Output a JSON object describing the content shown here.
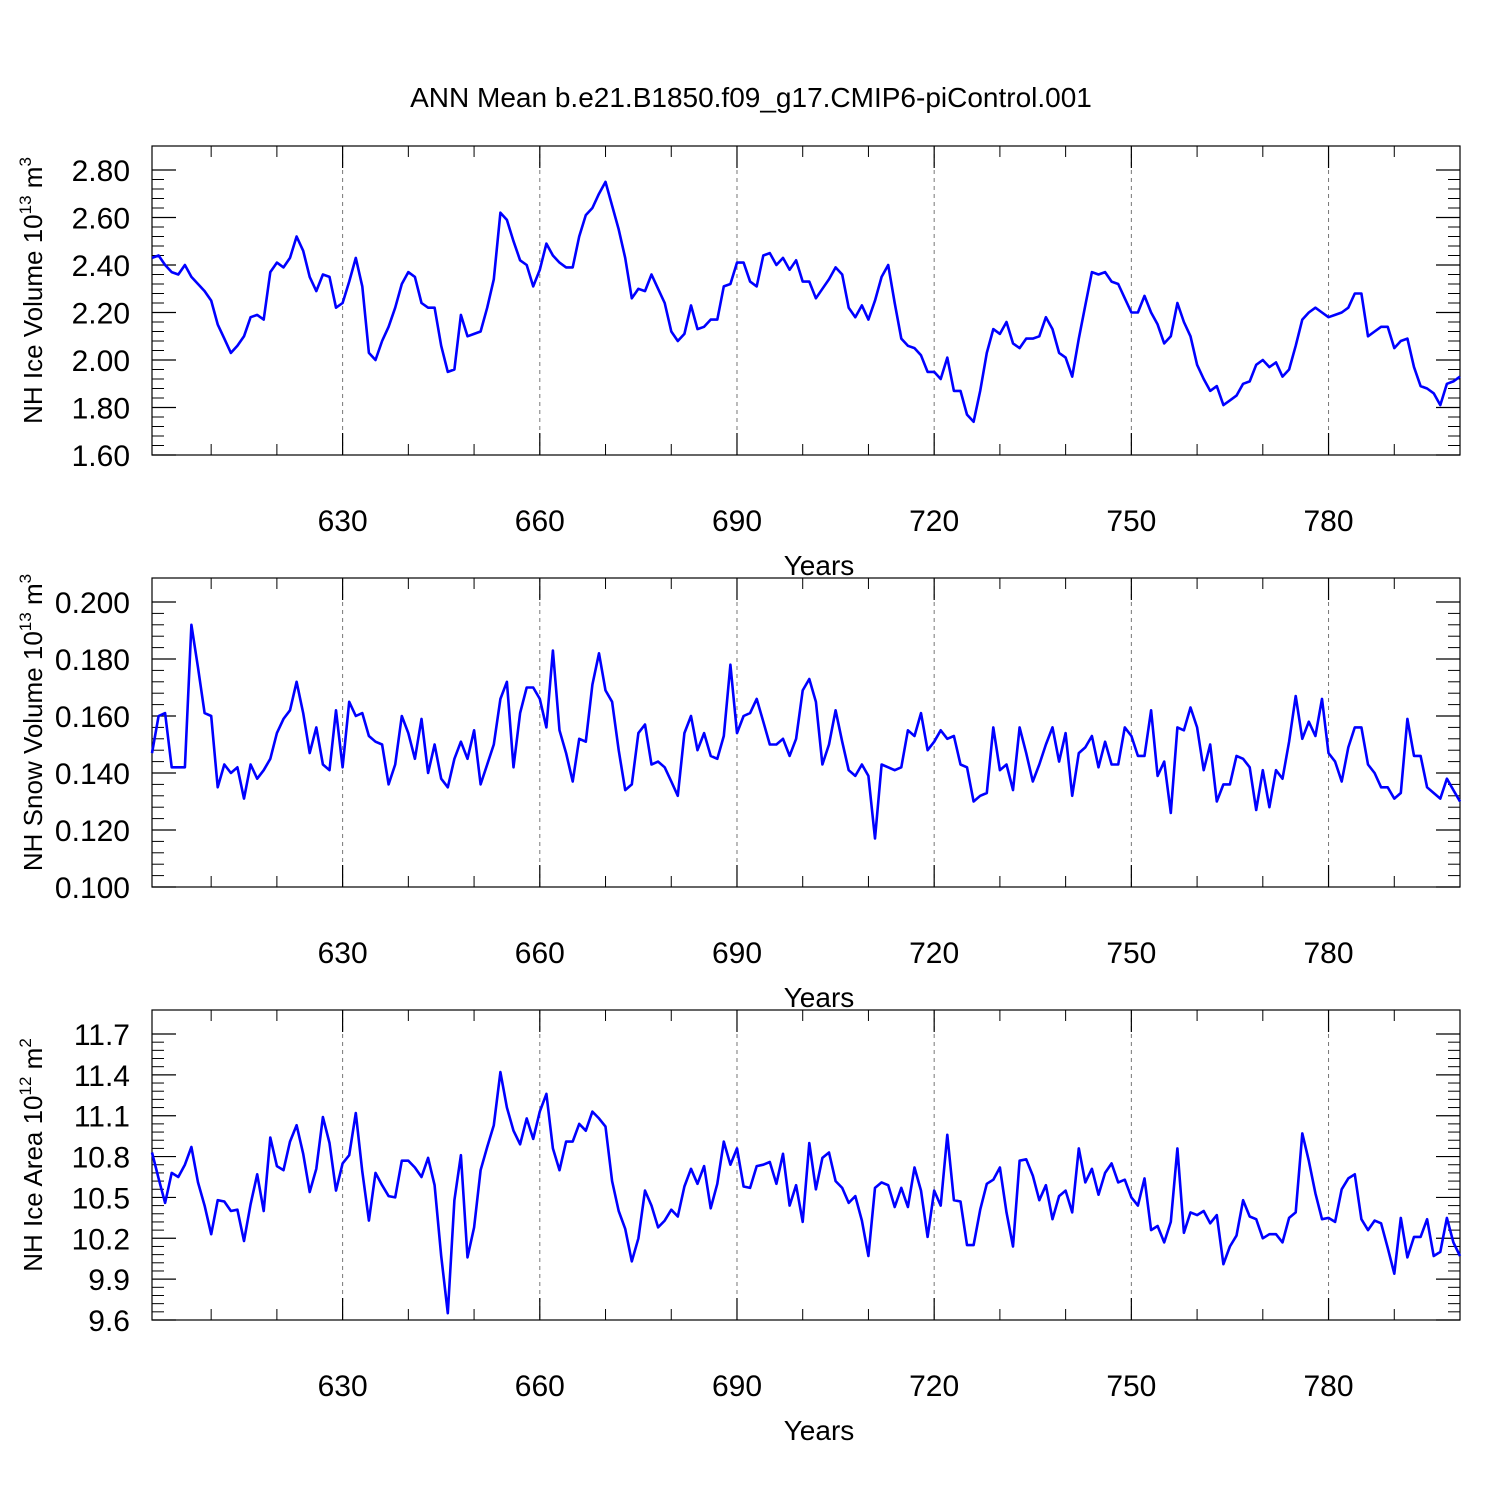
{
  "figure": {
    "title": "ANN Mean b.e21.B1850.f09_g17.CMIP6-piControl.001",
    "line_color": "#0000ff",
    "grid_color": "#777777"
  },
  "chart_data": [
    {
      "type": "line",
      "ylabel_main": "NH Ice Volume 10",
      "ylabel_exp": "13",
      "ylabel_unit": " m",
      "ylabel_unit_exp": "3",
      "xlabel": "Years",
      "xlim": [
        601,
        800
      ],
      "ylim": [
        1.6,
        2.8
      ],
      "yticks": [
        "1.60",
        "1.80",
        "2.00",
        "2.20",
        "2.40",
        "2.60",
        "2.80"
      ],
      "xticks": [
        "630",
        "660",
        "690",
        "720",
        "750",
        "780"
      ],
      "x_start": 601,
      "values": [
        2.43,
        2.44,
        2.4,
        2.37,
        2.36,
        2.4,
        2.35,
        2.32,
        2.29,
        2.25,
        2.15,
        2.09,
        2.03,
        2.06,
        2.1,
        2.18,
        2.19,
        2.17,
        2.37,
        2.41,
        2.39,
        2.43,
        2.52,
        2.46,
        2.35,
        2.29,
        2.36,
        2.35,
        2.22,
        2.24,
        2.33,
        2.43,
        2.31,
        2.03,
        2.0,
        2.08,
        2.14,
        2.22,
        2.32,
        2.37,
        2.35,
        2.24,
        2.22,
        2.22,
        2.06,
        1.95,
        1.96,
        2.19,
        2.1,
        2.11,
        2.12,
        2.22,
        2.34,
        2.62,
        2.59,
        2.5,
        2.42,
        2.4,
        2.31,
        2.38,
        2.49,
        2.44,
        2.41,
        2.39,
        2.39,
        2.52,
        2.61,
        2.64,
        2.7,
        2.75,
        2.65,
        2.55,
        2.43,
        2.26,
        2.3,
        2.29,
        2.36,
        2.3,
        2.24,
        2.12,
        2.08,
        2.11,
        2.23,
        2.13,
        2.14,
        2.17,
        2.17,
        2.31,
        2.32,
        2.41,
        2.41,
        2.33,
        2.31,
        2.44,
        2.45,
        2.4,
        2.43,
        2.38,
        2.42,
        2.33,
        2.33,
        2.26,
        2.3,
        2.34,
        2.39,
        2.36,
        2.22,
        2.18,
        2.23,
        2.17,
        2.25,
        2.35,
        2.4,
        2.24,
        2.09,
        2.06,
        2.05,
        2.02,
        1.95,
        1.95,
        1.92,
        2.01,
        1.87,
        1.87,
        1.77,
        1.74,
        1.87,
        2.03,
        2.13,
        2.11,
        2.16,
        2.07,
        2.05,
        2.09,
        2.09,
        2.1,
        2.18,
        2.13,
        2.03,
        2.01,
        1.93,
        2.09,
        2.23,
        2.37,
        2.36,
        2.37,
        2.33,
        2.32,
        2.26,
        2.2,
        2.2,
        2.27,
        2.2,
        2.15,
        2.07,
        2.1,
        2.24,
        2.16,
        2.1,
        1.98,
        1.92,
        1.87,
        1.89,
        1.81,
        1.83,
        1.85,
        1.9,
        1.91,
        1.98,
        2.0,
        1.97,
        1.99,
        1.93,
        1.96,
        2.06,
        2.17,
        2.2,
        2.22,
        2.2,
        2.18,
        2.19,
        2.2,
        2.22,
        2.28,
        2.28,
        2.1,
        2.12,
        2.14,
        2.14,
        2.05,
        2.08,
        2.09,
        1.97,
        1.89,
        1.88,
        1.86,
        1.81,
        1.9,
        1.91,
        1.93
      ]
    },
    {
      "type": "line",
      "ylabel_main": "NH Snow Volume 10",
      "ylabel_exp": "13",
      "ylabel_unit": " m",
      "ylabel_unit_exp": "3",
      "xlabel": "Years",
      "xlim": [
        601,
        800
      ],
      "ylim": [
        0.1,
        0.2
      ],
      "yticks": [
        "0.100",
        "0.120",
        "0.140",
        "0.160",
        "0.180",
        "0.200"
      ],
      "xticks": [
        "630",
        "660",
        "690",
        "720",
        "750",
        "780"
      ],
      "x_start": 601,
      "values": [
        0.147,
        0.16,
        0.161,
        0.142,
        0.142,
        0.142,
        0.192,
        0.177,
        0.161,
        0.16,
        0.135,
        0.143,
        0.14,
        0.142,
        0.131,
        0.143,
        0.138,
        0.141,
        0.145,
        0.154,
        0.159,
        0.162,
        0.172,
        0.161,
        0.147,
        0.156,
        0.143,
        0.141,
        0.162,
        0.142,
        0.165,
        0.16,
        0.161,
        0.153,
        0.151,
        0.15,
        0.136,
        0.143,
        0.16,
        0.154,
        0.145,
        0.159,
        0.14,
        0.15,
        0.138,
        0.135,
        0.145,
        0.151,
        0.145,
        0.155,
        0.136,
        0.143,
        0.15,
        0.166,
        0.172,
        0.142,
        0.161,
        0.17,
        0.17,
        0.166,
        0.156,
        0.183,
        0.155,
        0.147,
        0.137,
        0.152,
        0.151,
        0.171,
        0.182,
        0.169,
        0.165,
        0.148,
        0.134,
        0.136,
        0.154,
        0.157,
        0.143,
        0.144,
        0.142,
        0.137,
        0.132,
        0.154,
        0.16,
        0.148,
        0.154,
        0.146,
        0.145,
        0.153,
        0.178,
        0.154,
        0.16,
        0.161,
        0.166,
        0.158,
        0.15,
        0.15,
        0.152,
        0.146,
        0.152,
        0.169,
        0.173,
        0.165,
        0.143,
        0.15,
        0.162,
        0.151,
        0.141,
        0.139,
        0.143,
        0.139,
        0.117,
        0.143,
        0.142,
        0.141,
        0.142,
        0.155,
        0.153,
        0.161,
        0.148,
        0.151,
        0.155,
        0.152,
        0.153,
        0.143,
        0.142,
        0.13,
        0.132,
        0.133,
        0.156,
        0.141,
        0.143,
        0.134,
        0.156,
        0.147,
        0.137,
        0.143,
        0.15,
        0.156,
        0.144,
        0.154,
        0.132,
        0.147,
        0.149,
        0.153,
        0.142,
        0.151,
        0.143,
        0.143,
        0.156,
        0.153,
        0.146,
        0.146,
        0.162,
        0.139,
        0.144,
        0.126,
        0.156,
        0.155,
        0.163,
        0.156,
        0.141,
        0.15,
        0.13,
        0.136,
        0.136,
        0.146,
        0.145,
        0.142,
        0.127,
        0.141,
        0.128,
        0.141,
        0.138,
        0.151,
        0.167,
        0.152,
        0.158,
        0.153,
        0.166,
        0.147,
        0.144,
        0.137,
        0.149,
        0.156,
        0.156,
        0.143,
        0.14,
        0.135,
        0.135,
        0.131,
        0.133,
        0.159,
        0.146,
        0.146,
        0.135,
        0.133,
        0.131,
        0.138,
        0.134,
        0.13
      ]
    },
    {
      "type": "line",
      "ylabel_main": "NH Ice Area 10",
      "ylabel_exp": "12",
      "ylabel_unit": " m",
      "ylabel_unit_exp": "2",
      "xlabel": "Years",
      "xlim": [
        601,
        800
      ],
      "ylim": [
        9.6,
        11.7
      ],
      "yticks": [
        "9.6",
        "9.9",
        "10.2",
        "10.5",
        "10.8",
        "11.1",
        "11.4",
        "11.7"
      ],
      "xticks": [
        "630",
        "660",
        "690",
        "720",
        "750",
        "780"
      ],
      "x_start": 601,
      "values": [
        10.83,
        10.64,
        10.46,
        10.68,
        10.65,
        10.74,
        10.87,
        10.61,
        10.44,
        10.23,
        10.48,
        10.47,
        10.4,
        10.41,
        10.18,
        10.45,
        10.67,
        10.4,
        10.94,
        10.73,
        10.7,
        10.91,
        11.03,
        10.82,
        10.54,
        10.71,
        11.09,
        10.9,
        10.55,
        10.75,
        10.81,
        11.12,
        10.69,
        10.33,
        10.68,
        10.59,
        10.51,
        10.5,
        10.77,
        10.77,
        10.72,
        10.65,
        10.79,
        10.59,
        10.07,
        9.65,
        10.48,
        10.81,
        10.06,
        10.28,
        10.7,
        10.87,
        11.03,
        11.42,
        11.16,
        10.99,
        10.89,
        11.08,
        10.93,
        11.13,
        11.26,
        10.86,
        10.7,
        10.91,
        10.91,
        11.04,
        10.99,
        11.13,
        11.08,
        11.02,
        10.62,
        10.4,
        10.27,
        10.03,
        10.2,
        10.55,
        10.44,
        10.28,
        10.33,
        10.41,
        10.36,
        10.58,
        10.71,
        10.6,
        10.73,
        10.42,
        10.6,
        10.91,
        10.74,
        10.86,
        10.58,
        10.57,
        10.73,
        10.74,
        10.76,
        10.6,
        10.82,
        10.44,
        10.59,
        10.32,
        10.9,
        10.56,
        10.79,
        10.83,
        10.62,
        10.57,
        10.46,
        10.51,
        10.33,
        10.07,
        10.57,
        10.61,
        10.59,
        10.43,
        10.57,
        10.43,
        10.72,
        10.55,
        10.21,
        10.55,
        10.44,
        10.96,
        10.48,
        10.47,
        10.15,
        10.15,
        10.41,
        10.6,
        10.63,
        10.72,
        10.39,
        10.14,
        10.77,
        10.78,
        10.66,
        10.48,
        10.59,
        10.34,
        10.51,
        10.55,
        10.39,
        10.86,
        10.61,
        10.71,
        10.52,
        10.68,
        10.75,
        10.61,
        10.63,
        10.5,
        10.44,
        10.64,
        10.26,
        10.29,
        10.17,
        10.32,
        10.86,
        10.24,
        10.39,
        10.37,
        10.4,
        10.31,
        10.37,
        10.01,
        10.14,
        10.22,
        10.48,
        10.36,
        10.34,
        10.2,
        10.23,
        10.23,
        10.17,
        10.35,
        10.39,
        10.97,
        10.77,
        10.53,
        10.34,
        10.35,
        10.32,
        10.56,
        10.64,
        10.67,
        10.34,
        10.26,
        10.33,
        10.31,
        10.13,
        9.94,
        10.35,
        10.06,
        10.21,
        10.21,
        10.34,
        10.07,
        10.1,
        10.35,
        10.17,
        10.07
      ]
    }
  ]
}
